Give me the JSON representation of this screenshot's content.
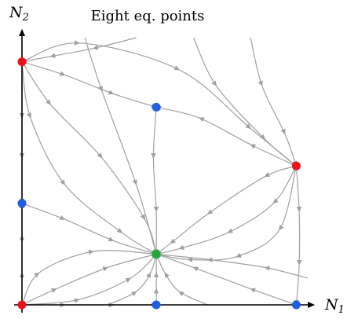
{
  "chart_data": {
    "type": "scatter",
    "title": "Eight eq. points",
    "xlabel": "N_1",
    "ylabel": "N_2",
    "xlim": [
      0,
      1.0
    ],
    "ylim": [
      0,
      1.0
    ],
    "grid": false,
    "legend": "none",
    "colors": {
      "unstable": "#e8141c",
      "saddle": "#1f5fe0",
      "stable": "#1ea83a",
      "stream": "#a0a0a0",
      "axis": "#000000"
    },
    "series": [
      {
        "kind": "unstable",
        "points": [
          [
            0.0,
            0.0
          ],
          [
            0.0,
            0.91
          ],
          [
            0.96,
            0.52
          ]
        ]
      },
      {
        "kind": "saddle",
        "points": [
          [
            0.47,
            0.0
          ],
          [
            0.96,
            0.0
          ],
          [
            0.0,
            0.38
          ],
          [
            0.47,
            0.74
          ]
        ]
      },
      {
        "kind": "stable",
        "points": [
          [
            0.47,
            0.19
          ]
        ]
      }
    ],
    "streamlines": [
      {
        "from": [
          0.0,
          0.91
        ],
        "to": [
          0.47,
          0.19
        ],
        "via": [
          [
            0.03,
            0.7
          ],
          [
            0.15,
            0.45
          ],
          [
            0.35,
            0.27
          ]
        ]
      },
      {
        "from": [
          0.0,
          0.91
        ],
        "to": [
          0.47,
          0.19
        ],
        "via": [
          [
            0.1,
            0.75
          ],
          [
            0.28,
            0.55
          ],
          [
            0.43,
            0.32
          ]
        ]
      },
      {
        "from": [
          0.0,
          0.91
        ],
        "to": [
          0.47,
          0.74
        ],
        "via": [
          [
            0.15,
            0.86
          ],
          [
            0.32,
            0.79
          ]
        ]
      },
      {
        "from": [
          0.0,
          0.91
        ],
        "to": [
          0.0,
          0.38
        ],
        "via": [
          [
            0.0,
            0.7
          ],
          [
            0.0,
            0.55
          ]
        ]
      },
      {
        "from": [
          0.0,
          0.91
        ],
        "to": [
          0.96,
          0.52
        ],
        "via": [
          [
            0.2,
            0.98
          ],
          [
            0.55,
            0.88
          ],
          [
            0.8,
            0.66
          ]
        ]
      },
      {
        "from": [
          0.96,
          0.52
        ],
        "to": [
          0.47,
          0.19
        ],
        "via": [
          [
            0.85,
            0.48
          ],
          [
            0.65,
            0.34
          ],
          [
            0.52,
            0.23
          ]
        ]
      },
      {
        "from": [
          0.96,
          0.52
        ],
        "to": [
          0.47,
          0.19
        ],
        "via": [
          [
            0.88,
            0.38
          ],
          [
            0.72,
            0.27
          ],
          [
            0.55,
            0.21
          ]
        ]
      },
      {
        "from": [
          0.96,
          0.52
        ],
        "to": [
          0.47,
          0.19
        ],
        "via": [
          [
            0.9,
            0.28
          ],
          [
            0.75,
            0.18
          ],
          [
            0.58,
            0.17
          ]
        ]
      },
      {
        "from": [
          0.96,
          0.52
        ],
        "to": [
          0.47,
          0.74
        ],
        "via": [
          [
            0.8,
            0.6
          ],
          [
            0.62,
            0.7
          ]
        ]
      },
      {
        "from": [
          0.96,
          0.52
        ],
        "to": [
          0.96,
          0.0
        ],
        "via": [
          [
            0.97,
            0.35
          ],
          [
            0.97,
            0.15
          ]
        ]
      },
      {
        "from": [
          0.0,
          0.0
        ],
        "to": [
          0.47,
          0.19
        ],
        "via": [
          [
            0.12,
            0.06
          ],
          [
            0.3,
            0.14
          ]
        ]
      },
      {
        "from": [
          0.0,
          0.0
        ],
        "to": [
          0.47,
          0.19
        ],
        "via": [
          [
            0.06,
            0.12
          ],
          [
            0.25,
            0.2
          ]
        ]
      },
      {
        "from": [
          0.0,
          0.0
        ],
        "to": [
          0.47,
          0.19
        ],
        "via": [
          [
            0.2,
            0.02
          ],
          [
            0.38,
            0.1
          ]
        ]
      },
      {
        "from": [
          0.0,
          0.0
        ],
        "to": [
          0.47,
          0.0
        ],
        "via": [
          [
            0.15,
            0.0
          ],
          [
            0.32,
            0.0
          ]
        ]
      },
      {
        "from": [
          0.0,
          0.0
        ],
        "to": [
          0.0,
          0.38
        ],
        "via": [
          [
            0.0,
            0.12
          ],
          [
            0.0,
            0.26
          ]
        ]
      },
      {
        "from": [
          0.47,
          0.0
        ],
        "to": [
          0.47,
          0.19
        ],
        "via": [
          [
            0.47,
            0.06
          ],
          [
            0.47,
            0.12
          ]
        ]
      },
      {
        "from": [
          0.96,
          0.0
        ],
        "to": [
          0.47,
          0.19
        ],
        "via": [
          [
            0.8,
            0.06
          ],
          [
            0.6,
            0.14
          ]
        ]
      },
      {
        "from": [
          0.47,
          0.74
        ],
        "to": [
          0.47,
          0.19
        ],
        "via": [
          [
            0.46,
            0.55
          ],
          [
            0.47,
            0.35
          ]
        ]
      },
      {
        "from": [
          0.0,
          0.38
        ],
        "to": [
          0.47,
          0.19
        ],
        "via": [
          [
            0.15,
            0.32
          ],
          [
            0.32,
            0.24
          ]
        ]
      },
      {
        "from": [
          0.22,
          1.0
        ],
        "to": [
          0.47,
          0.19
        ],
        "via": [
          [
            0.28,
            0.8
          ],
          [
            0.4,
            0.45
          ]
        ]
      },
      {
        "from": [
          0.6,
          1.0
        ],
        "to": [
          0.96,
          0.52
        ],
        "via": [
          [
            0.68,
            0.82
          ],
          [
            0.85,
            0.62
          ]
        ]
      },
      {
        "from": [
          0.8,
          1.0
        ],
        "to": [
          0.96,
          0.52
        ],
        "via": [
          [
            0.84,
            0.82
          ],
          [
            0.92,
            0.64
          ]
        ]
      },
      {
        "from": [
          0.4,
          1.0
        ],
        "to": [
          0.0,
          0.91
        ],
        "via": [
          [
            0.25,
            0.96
          ],
          [
            0.1,
            0.93
          ]
        ]
      },
      {
        "from": [
          1.0,
          0.1
        ],
        "to": [
          0.47,
          0.19
        ],
        "via": [
          [
            0.85,
            0.14
          ],
          [
            0.65,
            0.17
          ]
        ]
      },
      {
        "from": [
          0.3,
          0.0
        ],
        "to": [
          0.47,
          0.19
        ],
        "via": [
          [
            0.4,
            0.05
          ],
          [
            0.45,
            0.12
          ]
        ]
      },
      {
        "from": [
          0.65,
          0.0
        ],
        "to": [
          0.47,
          0.19
        ],
        "via": [
          [
            0.55,
            0.05
          ],
          [
            0.5,
            0.12
          ]
        ]
      }
    ]
  }
}
